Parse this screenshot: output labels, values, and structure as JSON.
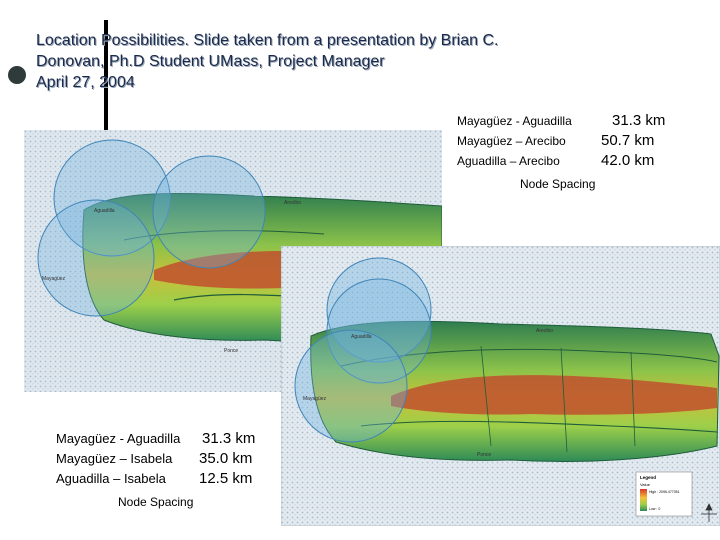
{
  "slide": {
    "title_lines": [
      "Location Possibilities. Slide taken from a presentation by  Brian C.",
      "Donovan, Ph.D Student UMass, Project Manager",
      "April 27, 2004"
    ]
  },
  "top_stats": {
    "rows": [
      {
        "label": "Mayagüez - Aguadilla",
        "value": "31.3 km"
      },
      {
        "label": "Mayagüez – Arecibo",
        "value": "50.7 km"
      },
      {
        "label": "Aguadilla – Arecibo",
        "value": "42.0 km"
      }
    ],
    "caption": "Node Spacing"
  },
  "bottom_stats": {
    "rows": [
      {
        "label": "Mayagüez - Aguadilla",
        "value": "31.3 km"
      },
      {
        "label": "Mayagüez – Isabela",
        "value": "35.0 km"
      },
      {
        "label": "Aguadilla – Isabela",
        "value": "12.5 km"
      }
    ],
    "caption": "Node Spacing"
  },
  "map1": {
    "towns": [
      "Aguadilla",
      "Mayagüez",
      "Arecibo",
      "Ponce"
    ]
  },
  "map2": {
    "towns": [
      "Aguadilla",
      "Mayagüez",
      "Arecibo",
      "Ponce"
    ],
    "legend": {
      "title": "Legend",
      "subtitle": "Value",
      "high": "High : 2096.477051",
      "low": "Low : 0"
    }
  },
  "colors": {
    "title_text": "#1a2a4a",
    "coverage_circle": "#6fb3e0",
    "sea_dots": "#b9c9d6",
    "terrain_low": "#2e8b57",
    "terrain_mid": "#9ccf4a",
    "terrain_high": "#c84a2a"
  }
}
